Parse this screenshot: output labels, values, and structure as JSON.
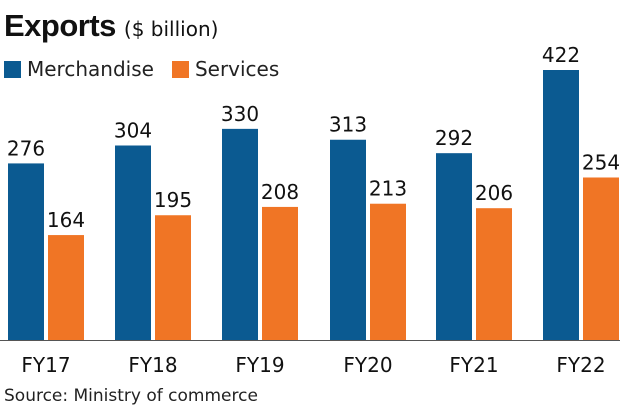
{
  "chart_data": {
    "type": "bar",
    "title": "Exports",
    "subtitle": "($ billion)",
    "xlabel": "",
    "ylabel": "",
    "categories": [
      "FY17",
      "FY18",
      "FY19",
      "FY20",
      "FY21",
      "FY22"
    ],
    "series": [
      {
        "name": "Merchandise",
        "color": "#0b5a91",
        "values": [
          276,
          304,
          330,
          313,
          292,
          422
        ]
      },
      {
        "name": "Services",
        "color": "#f07525",
        "values": [
          164,
          195,
          208,
          213,
          206,
          254
        ]
      }
    ],
    "ylim": [
      0,
      422
    ],
    "grid": false,
    "legend": "top-left",
    "data_labels": true,
    "source": "Source: Ministry of commerce"
  }
}
